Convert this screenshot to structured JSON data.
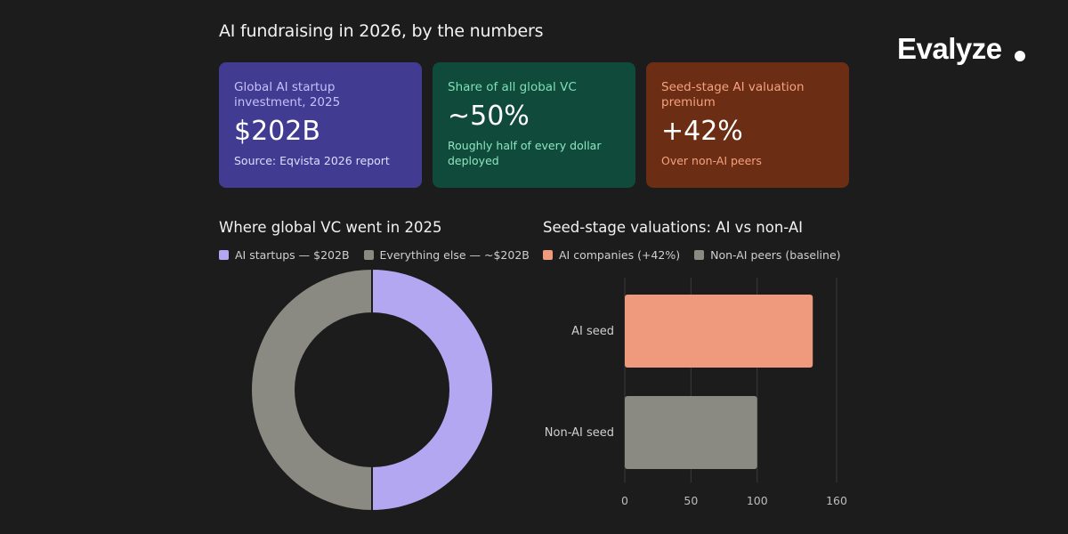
{
  "title": "AI fundraising in 2026, by the numbers",
  "brand": {
    "name": "Evalyze"
  },
  "colors": {
    "background": "#1c1c1c",
    "purple": "#b3a7f2",
    "gray": "#8a8a82",
    "salmon": "#ef9a7c"
  },
  "cards": [
    {
      "label": "Global AI startup investment, 2025",
      "value": "$202B",
      "note": "Source: Eqvista 2026 report",
      "bg": "#413b91",
      "label_color": "#c7c0fb",
      "note_color": "#e0dcff"
    },
    {
      "label": "Share of all global VC",
      "value": "~50%",
      "note": "Roughly half of every dollar deployed",
      "bg": "#0f4a3b",
      "label_color": "#7fe0b5",
      "note_color": "#8fe6bf"
    },
    {
      "label": "Seed-stage AI valuation premium",
      "value": "+42%",
      "note": "Over non-AI peers",
      "bg": "#6b2d14",
      "label_color": "#f6a27f",
      "note_color": "#f6a27f"
    }
  ],
  "chart_data": [
    {
      "type": "pie",
      "title": "Where global VC went in 2025",
      "categories": [
        "AI startups — $202B",
        "Everything else — ~$202B"
      ],
      "values": [
        202,
        202
      ],
      "colors": [
        "#b3a7f2",
        "#8a8a82"
      ],
      "legend": "top-left",
      "donut": true
    },
    {
      "type": "bar",
      "orientation": "horizontal",
      "title": "Seed-stage valuations: AI vs non-AI",
      "categories": [
        "AI seed",
        "Non-AI seed"
      ],
      "series": [
        {
          "name": "AI companies (+42%)",
          "values": [
            142,
            null
          ],
          "color": "#ef9a7c"
        },
        {
          "name": "Non-AI peers (baseline)",
          "values": [
            null,
            100
          ],
          "color": "#8a8a82"
        }
      ],
      "values": [
        142,
        100
      ],
      "xlim": [
        0,
        160
      ],
      "xticks": [
        0,
        50,
        100,
        160
      ],
      "grid": true,
      "legend": "top-left"
    }
  ]
}
